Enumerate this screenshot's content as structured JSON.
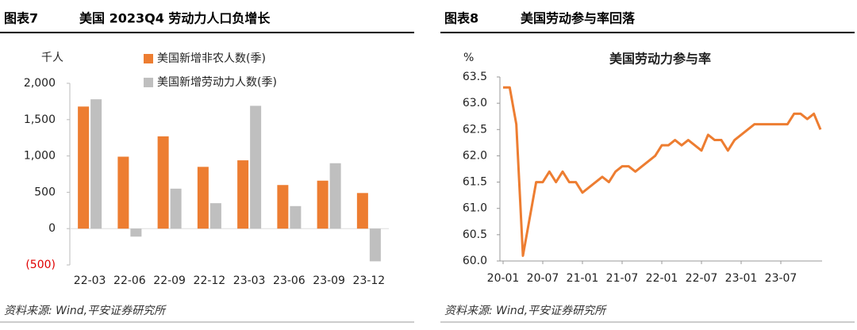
{
  "chart_data": [
    {
      "type": "bar",
      "figure_label": "图表7",
      "title": "美国 2023Q4 劳动力人口负增长",
      "y_unit": "千人",
      "categories": [
        "22-03",
        "22-06",
        "22-09",
        "22-12",
        "23-03",
        "23-06",
        "23-09",
        "23-12"
      ],
      "series": [
        {
          "name": "美国新增非农人数(季)",
          "color": "#ED7D31",
          "values": [
            1680,
            990,
            1270,
            850,
            940,
            600,
            660,
            490
          ]
        },
        {
          "name": "美国新增劳动力人数(季)",
          "color": "#BFBFBF",
          "values": [
            1780,
            -110,
            550,
            350,
            1690,
            310,
            900,
            -450
          ]
        }
      ],
      "ylim": [
        -500,
        2000
      ],
      "yticks": [
        {
          "value": -500,
          "label": "(500)"
        },
        0,
        500,
        {
          "value": 1000,
          "label": "1,000"
        },
        {
          "value": 1500,
          "label": "1,500"
        },
        {
          "value": 2000,
          "label": "2,000"
        }
      ],
      "negative_tick_color": "#E00000",
      "source": "资料来源: Wind,平安证券研究所"
    },
    {
      "type": "line",
      "figure_label": "图表8",
      "title": "美国劳动参与率回落",
      "chart_title": "美国劳动力参与率",
      "y_unit": "%",
      "categories": [
        "20-01",
        null,
        null,
        null,
        null,
        null,
        "20-07",
        null,
        null,
        null,
        null,
        null,
        "21-01",
        null,
        null,
        null,
        null,
        null,
        "21-07",
        null,
        null,
        null,
        null,
        null,
        "22-01",
        null,
        null,
        null,
        null,
        null,
        "22-07",
        null,
        null,
        null,
        null,
        null,
        "23-01",
        null,
        null,
        null,
        null,
        null,
        "23-07",
        null,
        null,
        null,
        null,
        null,
        null
      ],
      "series": [
        {
          "name": "美国劳动力参与率",
          "color": "#ED7D31",
          "values": [
            63.3,
            63.3,
            62.6,
            60.1,
            60.8,
            61.5,
            61.5,
            61.7,
            61.5,
            61.7,
            61.5,
            61.5,
            61.3,
            61.4,
            61.5,
            61.6,
            61.5,
            61.7,
            61.8,
            61.8,
            61.7,
            61.8,
            61.9,
            62.0,
            62.2,
            62.2,
            62.3,
            62.2,
            62.3,
            62.2,
            62.1,
            62.4,
            62.3,
            62.3,
            62.1,
            62.3,
            62.4,
            62.5,
            62.6,
            62.6,
            62.6,
            62.6,
            62.6,
            62.6,
            62.8,
            62.8,
            62.7,
            62.8,
            62.5
          ]
        }
      ],
      "ylim": [
        60,
        63.5
      ],
      "yticks": [
        {
          "value": 60,
          "label": "60.0"
        },
        60.5,
        {
          "value": 61,
          "label": "61.0"
        },
        61.5,
        {
          "value": 62,
          "label": "62.0"
        },
        62.5,
        {
          "value": 63,
          "label": "63.0"
        },
        63.5
      ],
      "source": "资料来源: Wind,平安证券研究所"
    }
  ]
}
